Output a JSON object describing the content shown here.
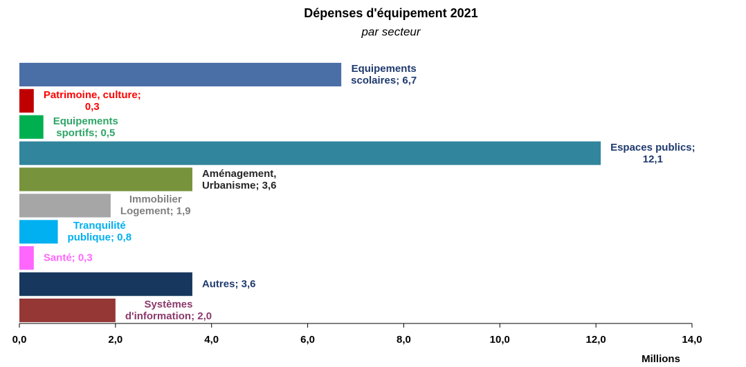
{
  "chart_data": {
    "type": "bar",
    "orientation": "horizontal",
    "title": "Dépenses  d'équipement 2021",
    "subtitle": "par secteur",
    "x_label": "Millions",
    "values": [
      6.7,
      0.3,
      0.5,
      12.1,
      3.6,
      1.9,
      0.8,
      0.3,
      3.6,
      2.0
    ],
    "value_labels": [
      "Equipements\nscolaires; 6,7",
      "Patrimoine, culture;\n0,3",
      "Equipements\nsportifs; 0,5",
      "Espaces publics;\n12,1",
      "Aménagement,\nUrbanisme; 3,6",
      "Immobilier\nLogement; 1,9",
      "Tranquilité\npublique; 0,8",
      "Santé; 0,3",
      "Autres; 3,6",
      "Systèmes\nd'information; 2,0"
    ],
    "colors": [
      "#4a6ea6",
      "#c00000",
      "#00b050",
      "#31859c",
      "#77933c",
      "#a6a6a6",
      "#00b0f0",
      "#ff66ff",
      "#17375e",
      "#953735"
    ],
    "label_colors": [
      "#1f3a6e",
      "#ff0000",
      "#2ea567",
      "#1f3a6e",
      "#262626",
      "#808080",
      "#00b0f0",
      "#ff66ff",
      "#1f3a6e",
      "#8b3a6b"
    ],
    "xlim": [
      0,
      14
    ],
    "xticks": [
      {
        "value": 0,
        "label": "0,0"
      },
      {
        "value": 2,
        "label": "2,0"
      },
      {
        "value": 4,
        "label": "4,0"
      },
      {
        "value": 6,
        "label": "6,0"
      },
      {
        "value": 8,
        "label": "8,0"
      },
      {
        "value": 10,
        "label": "10,0"
      },
      {
        "value": 12,
        "label": "12,0"
      },
      {
        "value": 14,
        "label": "14,0"
      }
    ]
  }
}
